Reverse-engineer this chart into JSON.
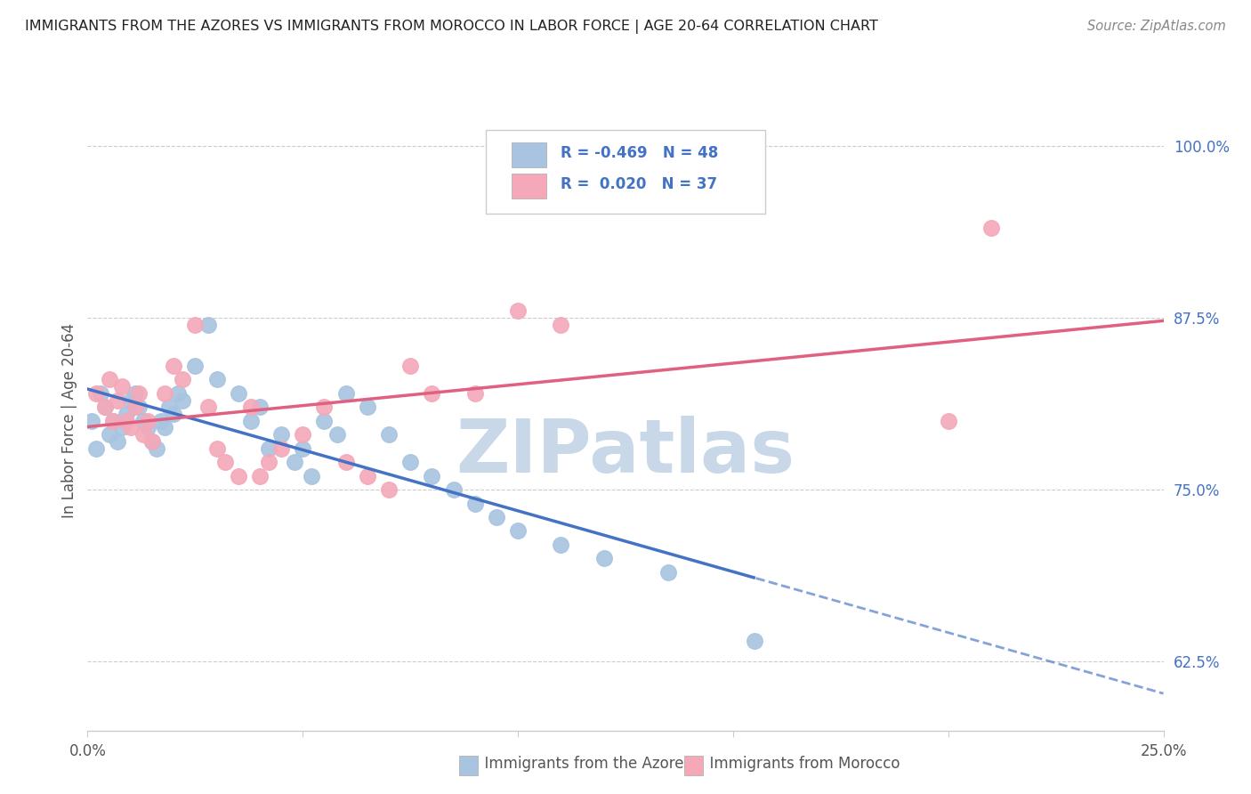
{
  "title": "IMMIGRANTS FROM THE AZORES VS IMMIGRANTS FROM MOROCCO IN LABOR FORCE | AGE 20-64 CORRELATION CHART",
  "source": "Source: ZipAtlas.com",
  "ylabel": "In Labor Force | Age 20-64",
  "x_min": 0.0,
  "x_max": 0.25,
  "y_min": 0.575,
  "y_max": 1.025,
  "y_ticks": [
    0.625,
    0.75,
    0.875,
    1.0
  ],
  "y_tick_labels": [
    "62.5%",
    "75.0%",
    "87.5%",
    "100.0%"
  ],
  "x_ticks": [
    0.0,
    0.05,
    0.1,
    0.15,
    0.2,
    0.25
  ],
  "x_tick_labels": [
    "0.0%",
    "",
    "",
    "",
    "",
    "25.0%"
  ],
  "legend_R1": "-0.469",
  "legend_N1": "48",
  "legend_R2": "0.020",
  "legend_N2": "37",
  "color_azores": "#a8c4e0",
  "color_morocco": "#f4a8b8",
  "color_blue_line": "#4472c4",
  "color_pink_line": "#e06080",
  "watermark": "ZIPatlas",
  "watermark_color": "#c8d8e8",
  "azores_x": [
    0.001,
    0.002,
    0.003,
    0.004,
    0.005,
    0.006,
    0.007,
    0.008,
    0.009,
    0.01,
    0.011,
    0.012,
    0.013,
    0.014,
    0.015,
    0.016,
    0.017,
    0.018,
    0.019,
    0.02,
    0.021,
    0.022,
    0.025,
    0.028,
    0.03,
    0.035,
    0.038,
    0.04,
    0.042,
    0.045,
    0.048,
    0.05,
    0.052,
    0.055,
    0.058,
    0.06,
    0.065,
    0.07,
    0.075,
    0.08,
    0.085,
    0.09,
    0.095,
    0.1,
    0.11,
    0.12,
    0.135,
    0.155
  ],
  "azores_y": [
    0.8,
    0.78,
    0.82,
    0.81,
    0.79,
    0.8,
    0.785,
    0.795,
    0.805,
    0.815,
    0.82,
    0.81,
    0.8,
    0.795,
    0.785,
    0.78,
    0.8,
    0.795,
    0.81,
    0.805,
    0.82,
    0.815,
    0.84,
    0.87,
    0.83,
    0.82,
    0.8,
    0.81,
    0.78,
    0.79,
    0.77,
    0.78,
    0.76,
    0.8,
    0.79,
    0.82,
    0.81,
    0.79,
    0.77,
    0.76,
    0.75,
    0.74,
    0.73,
    0.72,
    0.71,
    0.7,
    0.69,
    0.64
  ],
  "morocco_x": [
    0.002,
    0.004,
    0.005,
    0.006,
    0.007,
    0.008,
    0.009,
    0.01,
    0.011,
    0.012,
    0.013,
    0.014,
    0.015,
    0.018,
    0.02,
    0.022,
    0.025,
    0.028,
    0.03,
    0.032,
    0.035,
    0.038,
    0.04,
    0.042,
    0.045,
    0.05,
    0.055,
    0.06,
    0.065,
    0.07,
    0.075,
    0.08,
    0.09,
    0.1,
    0.11,
    0.2,
    0.21
  ],
  "morocco_y": [
    0.82,
    0.81,
    0.83,
    0.8,
    0.815,
    0.825,
    0.8,
    0.795,
    0.81,
    0.82,
    0.79,
    0.8,
    0.785,
    0.82,
    0.84,
    0.83,
    0.87,
    0.81,
    0.78,
    0.77,
    0.76,
    0.81,
    0.76,
    0.77,
    0.78,
    0.79,
    0.81,
    0.77,
    0.76,
    0.75,
    0.84,
    0.82,
    0.82,
    0.88,
    0.87,
    0.8,
    0.94
  ]
}
